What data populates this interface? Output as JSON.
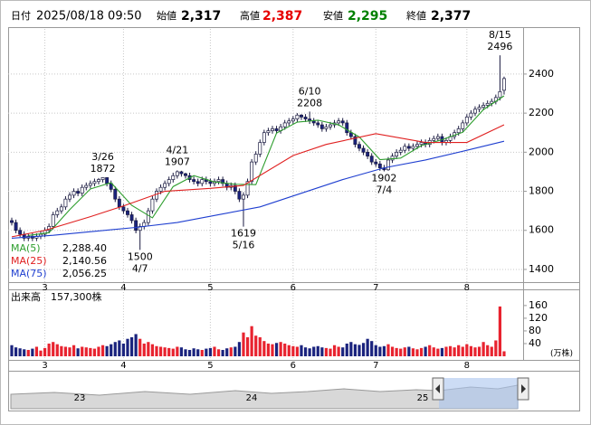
{
  "chart_data": {
    "type": "candlestick",
    "date_label": "日付",
    "date": "2025/08/18 09:50",
    "quote": [
      {
        "name": "始値",
        "price": {
          "value": 2317,
          "label": "2,317"
        },
        "color": "#000000"
      },
      {
        "name": "高値",
        "price": {
          "value": 2387,
          "label": "2,387"
        },
        "color": "#e60000"
      },
      {
        "name": "安値",
        "price": {
          "value": 2295,
          "label": "2,295"
        },
        "color": "#008000"
      },
      {
        "name": "終値",
        "price": {
          "value": 2377,
          "label": "2,377"
        },
        "color": "#000000"
      }
    ],
    "open": [
      1650,
      1640,
      1600,
      1580,
      1560,
      1570,
      1560,
      1570,
      1580,
      1600,
      1620,
      1680,
      1700,
      1720,
      1760,
      1780,
      1800,
      1790,
      1820,
      1830,
      1840,
      1850,
      1860,
      1870,
      1840,
      1810,
      1760,
      1720,
      1700,
      1680,
      1650,
      1600,
      1620,
      1640,
      1700,
      1760,
      1800,
      1820,
      1840,
      1860,
      1880,
      1900,
      1890,
      1880,
      1860,
      1850,
      1840,
      1860,
      1850,
      1840,
      1850,
      1860,
      1840,
      1820,
      1830,
      1800,
      1760,
      1780,
      1850,
      1950,
      1990,
      2050,
      2100,
      2110,
      2120,
      2110,
      2130,
      2150,
      2160,
      2170,
      2190,
      2180,
      2170,
      2160,
      2150,
      2140,
      2120,
      2130,
      2140,
      2150,
      2160,
      2150,
      2100,
      2080,
      2040,
      2020,
      2000,
      1980,
      1950,
      1940,
      1920,
      1910,
      1960,
      1980,
      2000,
      2010,
      2030,
      2020,
      2030,
      2040,
      2050,
      2040,
      2060,
      2070,
      2080,
      2050,
      2060,
      2080,
      2100,
      2120,
      2150,
      2180,
      2200,
      2220,
      2230,
      2240,
      2250,
      2260,
      2280,
      2317
    ],
    "high": [
      1665,
      1655,
      1615,
      1595,
      1585,
      1585,
      1585,
      1595,
      1615,
      1635,
      1695,
      1715,
      1735,
      1775,
      1795,
      1815,
      1815,
      1835,
      1845,
      1855,
      1865,
      1868,
      1872,
      1865,
      1855,
      1825,
      1775,
      1735,
      1715,
      1695,
      1665,
      1635,
      1655,
      1715,
      1775,
      1815,
      1835,
      1855,
      1875,
      1895,
      1907,
      1905,
      1895,
      1895,
      1875,
      1865,
      1875,
      1875,
      1865,
      1865,
      1875,
      1875,
      1855,
      1845,
      1845,
      1815,
      1795,
      1865,
      1965,
      2005,
      2065,
      2115,
      2125,
      2135,
      2135,
      2145,
      2165,
      2175,
      2185,
      2200,
      2195,
      2195,
      2208,
      2175,
      2165,
      2155,
      2145,
      2155,
      2165,
      2175,
      2175,
      2165,
      2115,
      2095,
      2055,
      2035,
      2015,
      1995,
      1965,
      1955,
      1935,
      1975,
      1995,
      2015,
      2025,
      2045,
      2045,
      2045,
      2055,
      2065,
      2065,
      2075,
      2085,
      2095,
      2095,
      2075,
      2095,
      2115,
      2135,
      2165,
      2195,
      2215,
      2235,
      2245,
      2255,
      2265,
      2275,
      2295,
      2496,
      2387
    ],
    "low": [
      1625,
      1585,
      1565,
      1545,
      1545,
      1545,
      1545,
      1555,
      1565,
      1585,
      1605,
      1665,
      1685,
      1705,
      1745,
      1765,
      1775,
      1775,
      1805,
      1815,
      1825,
      1835,
      1845,
      1825,
      1795,
      1745,
      1705,
      1685,
      1665,
      1635,
      1585,
      1500,
      1605,
      1625,
      1685,
      1745,
      1785,
      1805,
      1825,
      1845,
      1865,
      1875,
      1865,
      1845,
      1835,
      1825,
      1825,
      1835,
      1825,
      1825,
      1835,
      1825,
      1805,
      1805,
      1785,
      1745,
      1619,
      1765,
      1835,
      1935,
      1975,
      2035,
      2085,
      2095,
      2095,
      2095,
      2115,
      2135,
      2145,
      2155,
      2165,
      2155,
      2145,
      2135,
      2125,
      2105,
      2105,
      2115,
      2125,
      2135,
      2135,
      2085,
      2065,
      2025,
      2005,
      1985,
      1965,
      1935,
      1925,
      1905,
      1902,
      1905,
      1945,
      1965,
      1985,
      1995,
      2005,
      2005,
      2015,
      2025,
      2025,
      2025,
      2045,
      2055,
      2035,
      2035,
      2045,
      2065,
      2085,
      2105,
      2135,
      2165,
      2185,
      2205,
      2215,
      2225,
      2235,
      2245,
      2265,
      2295
    ],
    "close": [
      1640,
      1600,
      1580,
      1560,
      1570,
      1560,
      1570,
      1580,
      1600,
      1620,
      1680,
      1700,
      1720,
      1760,
      1780,
      1800,
      1790,
      1820,
      1830,
      1840,
      1850,
      1860,
      1870,
      1840,
      1810,
      1760,
      1720,
      1700,
      1680,
      1650,
      1600,
      1620,
      1640,
      1700,
      1760,
      1800,
      1820,
      1840,
      1860,
      1880,
      1900,
      1890,
      1880,
      1860,
      1850,
      1840,
      1860,
      1850,
      1840,
      1850,
      1860,
      1840,
      1820,
      1830,
      1800,
      1760,
      1780,
      1850,
      1950,
      1990,
      2050,
      2100,
      2110,
      2120,
      2110,
      2130,
      2150,
      2160,
      2170,
      2190,
      2180,
      2170,
      2160,
      2150,
      2140,
      2120,
      2130,
      2140,
      2150,
      2160,
      2150,
      2100,
      2080,
      2040,
      2020,
      2000,
      1980,
      1950,
      1940,
      1920,
      1910,
      1960,
      1980,
      2000,
      2010,
      2030,
      2020,
      2030,
      2040,
      2050,
      2040,
      2060,
      2070,
      2080,
      2050,
      2060,
      2080,
      2100,
      2120,
      2150,
      2180,
      2200,
      2220,
      2230,
      2240,
      2250,
      2260,
      2280,
      2310,
      2377
    ],
    "up_color": "#ffffff",
    "down_color": "#1a237e",
    "edge_color": "#1a1a40",
    "xlim": [
      -0.875,
      123.6
    ],
    "ylim": [
      1335,
      2631
    ],
    "yticks": [
      1400,
      1600,
      1800,
      2000,
      2200,
      2400
    ],
    "xticks": [
      {
        "value": 8,
        "label": "3"
      },
      {
        "value": 27,
        "label": "4"
      },
      {
        "value": 48,
        "label": "5"
      },
      {
        "value": 68,
        "label": "6"
      },
      {
        "value": 88,
        "label": "7"
      },
      {
        "value": 110,
        "label": "8"
      }
    ],
    "grid": true,
    "series": [
      {
        "name": "MA(5)",
        "color": "#2e9e2e",
        "legend_value": {
          "value": 2288.4,
          "label": "2,288.40"
        },
        "x": [
          4,
          9,
          14,
          19,
          24,
          29,
          34,
          39,
          44,
          49,
          54,
          59,
          64,
          69,
          74,
          79,
          84,
          89,
          94,
          99,
          104,
          109,
          114,
          119
        ],
        "values": [
          1574,
          1588,
          1706,
          1812,
          1844,
          1728,
          1664,
          1824,
          1880,
          1848,
          1836,
          1834,
          2098,
          2154,
          2164,
          2140,
          2078,
          1962,
          1970,
          2034,
          2064,
          2102,
          2218,
          2288.4
        ]
      },
      {
        "name": "MA(25)",
        "color": "#e02020",
        "legend_value": {
          "value": 2140.56,
          "label": "2,140.56"
        },
        "x": [
          0,
          8,
          19,
          27,
          37,
          48,
          56,
          68,
          76,
          88,
          100,
          110,
          119
        ],
        "values": [
          1567,
          1600,
          1670,
          1725,
          1800,
          1815,
          1830,
          1983,
          2040,
          2095,
          2050,
          2050,
          2140.56
        ]
      },
      {
        "name": "MA(75)",
        "color": "#1f3fd0",
        "legend_value": {
          "value": 2056.25,
          "label": "2,056.25"
        },
        "x": [
          0,
          10,
          20,
          30,
          40,
          50,
          60,
          70,
          80,
          90,
          100,
          110,
          119
        ],
        "values": [
          1560,
          1575,
          1595,
          1615,
          1640,
          1680,
          1720,
          1790,
          1860,
          1920,
          1960,
          2010,
          2056.25
        ]
      }
    ],
    "annotations": [
      {
        "x": 22,
        "date": "3/26",
        "value": 1872,
        "position": "above"
      },
      {
        "x": 40,
        "date": "4/21",
        "value": 1907,
        "position": "above"
      },
      {
        "x": 72,
        "date": "6/10",
        "value": 2208,
        "position": "above"
      },
      {
        "x": 118,
        "date": "8/15",
        "value": 2496,
        "position": "above"
      },
      {
        "x": 31,
        "date": "4/7",
        "value": 1500,
        "position": "below"
      },
      {
        "x": 56,
        "date": "5/16",
        "value": 1619,
        "position": "below"
      },
      {
        "x": 90,
        "date": "7/4",
        "value": 1902,
        "position": "below"
      }
    ],
    "volume": {
      "title": "出来高",
      "current": {
        "value": 157300,
        "label": "157,300株"
      },
      "unit": "(万株)",
      "up_color": "#e8232f",
      "down_color": "#1a237e",
      "ylim": [
        0,
        211
      ],
      "yticks": [
        40,
        80,
        120,
        160
      ],
      "values": [
        35,
        28,
        25,
        22,
        20,
        24,
        30,
        18,
        26,
        40,
        45,
        38,
        32,
        30,
        28,
        35,
        25,
        30,
        28,
        26,
        24,
        30,
        35,
        32,
        38,
        45,
        50,
        40,
        55,
        60,
        70,
        55,
        40,
        45,
        38,
        32,
        30,
        28,
        26,
        24,
        30,
        28,
        22,
        20,
        25,
        22,
        20,
        24,
        26,
        30,
        22,
        20,
        25,
        28,
        30,
        45,
        75,
        60,
        95,
        65,
        60,
        48,
        40,
        38,
        42,
        45,
        40,
        35,
        32,
        30,
        35,
        28,
        25,
        30,
        32,
        28,
        26,
        24,
        35,
        30,
        28,
        40,
        45,
        38,
        36,
        42,
        55,
        48,
        35,
        30,
        32,
        38,
        30,
        26,
        24,
        28,
        30,
        25,
        22,
        26,
        30,
        35,
        28,
        24,
        26,
        30,
        32,
        28,
        35,
        30,
        38,
        32,
        28,
        30,
        45,
        35,
        30,
        50,
        157,
        15.73
      ]
    },
    "navigator": {
      "labels": [
        "23",
        "24",
        "25"
      ]
    }
  }
}
